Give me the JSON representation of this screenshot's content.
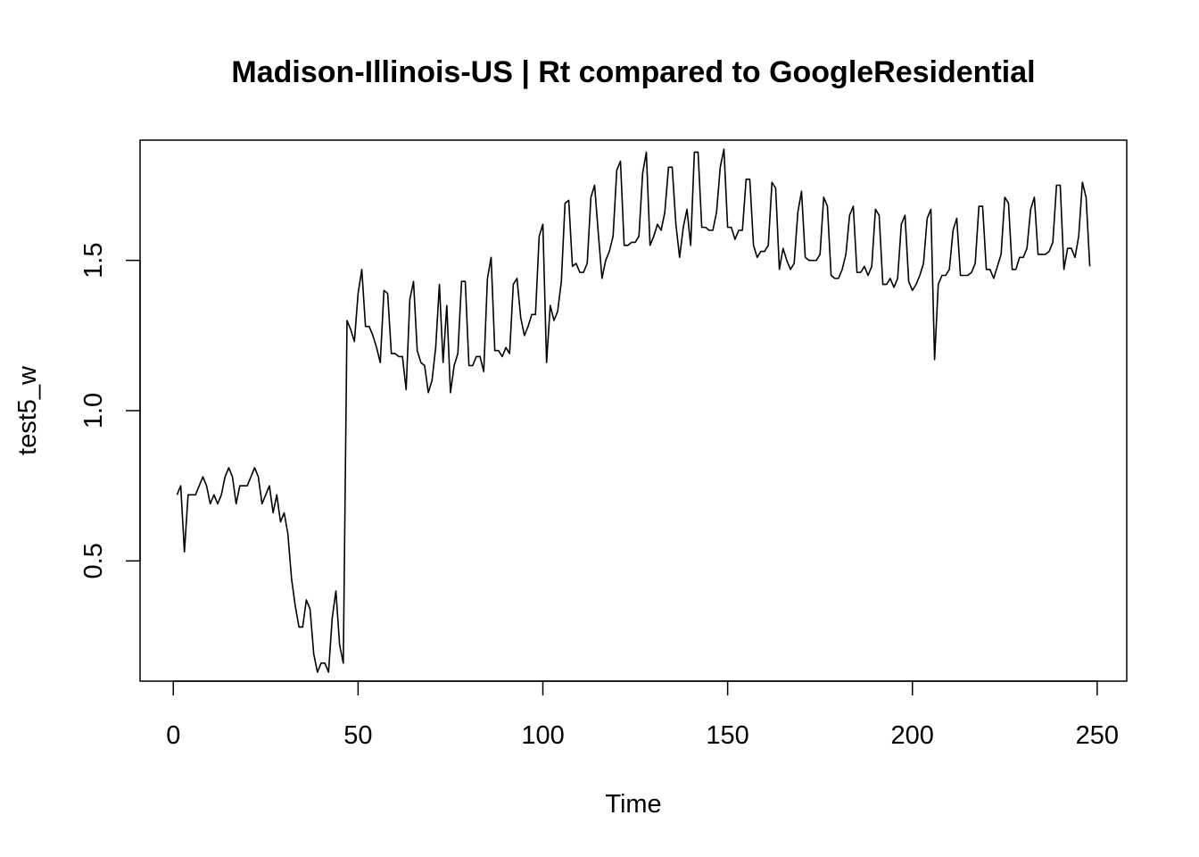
{
  "chart_data": {
    "type": "line",
    "title": "Madison-Illinois-US | Rt compared to GoogleResidential",
    "xlabel": "Time",
    "ylabel": "test5_w",
    "xlim": [
      -9,
      258
    ],
    "ylim": [
      0.1,
      1.9
    ],
    "x_ticks": [
      0,
      50,
      100,
      150,
      200,
      250
    ],
    "y_ticks": [
      0.5,
      1.0,
      1.5
    ],
    "x_tick_labels": [
      "0",
      "50",
      "100",
      "150",
      "200",
      "250"
    ],
    "y_tick_labels": [
      "0.5",
      "1.0",
      "1.5"
    ],
    "grid": false,
    "line_color": "#000000",
    "series": [
      {
        "x_start": 1,
        "x_step": 1,
        "values": [
          0.72,
          0.75,
          0.53,
          0.72,
          0.72,
          0.72,
          0.75,
          0.78,
          0.75,
          0.69,
          0.72,
          0.69,
          0.72,
          0.78,
          0.81,
          0.78,
          0.69,
          0.75,
          0.75,
          0.75,
          0.78,
          0.81,
          0.78,
          0.69,
          0.72,
          0.75,
          0.66,
          0.72,
          0.63,
          0.66,
          0.59,
          0.44,
          0.35,
          0.28,
          0.28,
          0.37,
          0.34,
          0.19,
          0.13,
          0.16,
          0.16,
          0.13,
          0.31,
          0.4,
          0.22,
          0.16,
          1.3,
          1.27,
          1.23,
          1.39,
          1.47,
          1.28,
          1.28,
          1.25,
          1.21,
          1.16,
          1.4,
          1.39,
          1.19,
          1.19,
          1.18,
          1.18,
          1.07,
          1.37,
          1.43,
          1.2,
          1.16,
          1.15,
          1.06,
          1.1,
          1.21,
          1.42,
          1.16,
          1.35,
          1.06,
          1.15,
          1.19,
          1.43,
          1.43,
          1.15,
          1.15,
          1.18,
          1.18,
          1.13,
          1.44,
          1.51,
          1.2,
          1.2,
          1.18,
          1.21,
          1.19,
          1.42,
          1.44,
          1.31,
          1.25,
          1.28,
          1.32,
          1.32,
          1.58,
          1.62,
          1.16,
          1.35,
          1.3,
          1.33,
          1.43,
          1.69,
          1.7,
          1.48,
          1.49,
          1.46,
          1.46,
          1.49,
          1.71,
          1.75,
          1.59,
          1.44,
          1.5,
          1.53,
          1.58,
          1.8,
          1.83,
          1.55,
          1.55,
          1.56,
          1.56,
          1.58,
          1.79,
          1.86,
          1.55,
          1.58,
          1.62,
          1.6,
          1.66,
          1.81,
          1.81,
          1.62,
          1.51,
          1.61,
          1.67,
          1.55,
          1.86,
          1.86,
          1.61,
          1.61,
          1.6,
          1.6,
          1.66,
          1.81,
          1.87,
          1.61,
          1.61,
          1.57,
          1.6,
          1.6,
          1.77,
          1.77,
          1.55,
          1.51,
          1.53,
          1.53,
          1.55,
          1.76,
          1.74,
          1.47,
          1.54,
          1.5,
          1.47,
          1.49,
          1.66,
          1.73,
          1.51,
          1.5,
          1.5,
          1.5,
          1.52,
          1.71,
          1.68,
          1.45,
          1.44,
          1.44,
          1.47,
          1.52,
          1.65,
          1.68,
          1.46,
          1.46,
          1.48,
          1.45,
          1.48,
          1.67,
          1.65,
          1.42,
          1.42,
          1.44,
          1.41,
          1.44,
          1.62,
          1.65,
          1.43,
          1.4,
          1.42,
          1.45,
          1.49,
          1.64,
          1.67,
          1.17,
          1.42,
          1.45,
          1.45,
          1.47,
          1.6,
          1.64,
          1.45,
          1.45,
          1.45,
          1.46,
          1.49,
          1.68,
          1.68,
          1.47,
          1.47,
          1.44,
          1.48,
          1.52,
          1.71,
          1.69,
          1.47,
          1.47,
          1.51,
          1.51,
          1.54,
          1.67,
          1.71,
          1.52,
          1.52,
          1.52,
          1.53,
          1.56,
          1.75,
          1.75,
          1.47,
          1.54,
          1.54,
          1.51,
          1.58,
          1.76,
          1.71,
          1.48
        ]
      }
    ]
  }
}
